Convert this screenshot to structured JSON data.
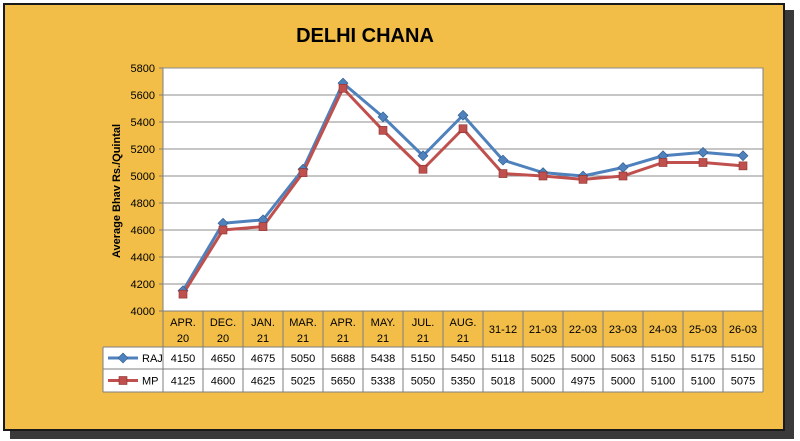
{
  "chart_data": {
    "type": "line",
    "title": "DELHI CHANA",
    "ylabel": "Average Bhav Rs./Quintal",
    "xlabel": "",
    "ylim": [
      4000,
      5800
    ],
    "yticks": [
      4000,
      4200,
      4400,
      4600,
      4800,
      5000,
      5200,
      5400,
      5600,
      5800
    ],
    "grid": true,
    "legend": "table-left",
    "categories": [
      [
        "APR.",
        "20"
      ],
      [
        "DEC.",
        "20"
      ],
      [
        "JAN.",
        "21"
      ],
      [
        "MAR.",
        "21"
      ],
      [
        "APR.",
        "21"
      ],
      [
        "MAY.",
        "21"
      ],
      [
        "JUL.",
        "21"
      ],
      [
        "AUG.",
        "21"
      ],
      [
        "31-12"
      ],
      [
        "21-03"
      ],
      [
        "22-03"
      ],
      [
        "23-03"
      ],
      [
        "24-03"
      ],
      [
        "25-03"
      ],
      [
        "26-03"
      ]
    ],
    "series": [
      {
        "name": "RAJ",
        "color": "#4F81BD",
        "marker": "diamond",
        "values": [
          4150,
          4650,
          4675,
          5050,
          5688,
          5438,
          5150,
          5450,
          5118,
          5025,
          5000,
          5063,
          5150,
          5175,
          5150
        ]
      },
      {
        "name": "MP",
        "color": "#C0504D",
        "marker": "square",
        "values": [
          4125,
          4600,
          4625,
          5025,
          5650,
          5338,
          5050,
          5350,
          5018,
          5000,
          4975,
          5000,
          5100,
          5100,
          5075
        ]
      }
    ],
    "plot_bg": "#FFFFFF",
    "page_bg": "#F2BE48"
  }
}
